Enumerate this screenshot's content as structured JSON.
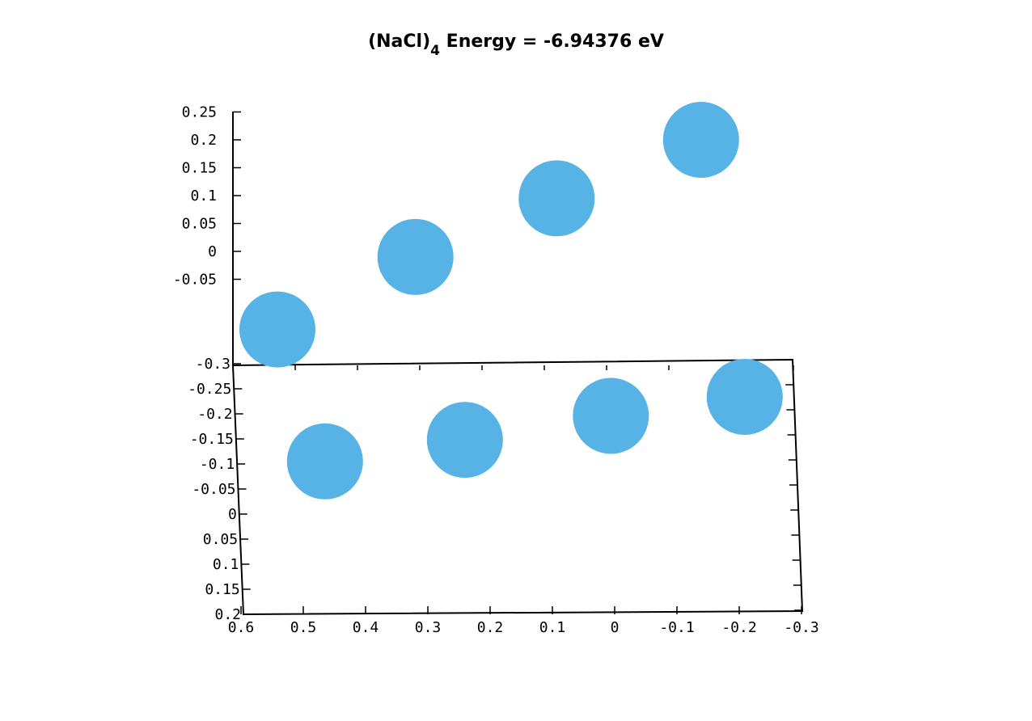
{
  "chart_data": {
    "type": "scatter",
    "title": {
      "prefix": "(NaCl)",
      "subscript": "4",
      "suffix": " Energy = -6.94376 eV"
    },
    "z_axis_ticks": [
      "0.25",
      "0.2",
      "0.15",
      "0.1",
      "0.05",
      "0",
      "-0.05"
    ],
    "y_axis_ticks": [
      "-0.3",
      "-0.25",
      "-0.2",
      "-0.15",
      "-0.1",
      "-0.05",
      "0",
      "0.05",
      "0.1",
      "0.15",
      "0.2"
    ],
    "x_axis_ticks": [
      "0.6",
      "0.5",
      "0.4",
      "0.3",
      "0.2",
      "0.1",
      "0",
      "-0.1",
      "-0.2",
      "-0.3"
    ],
    "marker_color": "#57b2e6",
    "atoms": [
      {
        "x": 0.54,
        "y": 0.2,
        "z": -0.14
      },
      {
        "x": 0.32,
        "y": 0.2,
        "z": -0.01
      },
      {
        "x": 0.095,
        "y": 0.2,
        "z": 0.095
      },
      {
        "x": -0.135,
        "y": 0.2,
        "z": 0.2
      },
      {
        "x": -0.215,
        "y": -0.3,
        "z": -0.01
      },
      {
        "x": 0.0,
        "y": -0.22,
        "z": -0.02
      },
      {
        "x": 0.235,
        "y": -0.104,
        "z": -0.02
      },
      {
        "x": 0.46,
        "y": 0.0,
        "z": -0.02
      }
    ]
  }
}
